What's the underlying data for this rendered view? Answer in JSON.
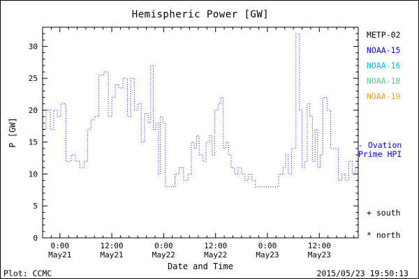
{
  "title": "Hemispheric Power [GW]",
  "legend": {
    "items": [
      {
        "label": "METP-02",
        "color": "#000000"
      },
      {
        "label": "NOAA-15",
        "color": "#0000ff"
      },
      {
        "label": "NOAA-16",
        "color": "#00bbee"
      },
      {
        "label": "NOAA-18",
        "color": "#55cc88"
      },
      {
        "label": "NOAA-19",
        "color": "#ff9922"
      }
    ],
    "series_label_line1": "- Ovation",
    "series_label_line2": "Prime HPI",
    "series_label_color": "#0000ff",
    "south_key": "+ south",
    "north_key": "* north"
  },
  "footer": {
    "plot_credit": "Plot: CCMC",
    "timestamp": "2015/05/23 19:50:13"
  },
  "chart_data": {
    "type": "line",
    "style": "dotted-step",
    "line_color": "#0000dd",
    "title": "Hemispheric Power [GW]",
    "xlabel": "Date and Time",
    "ylabel": "P [GW]",
    "ylim": [
      0,
      33
    ],
    "yticks": [
      0,
      5,
      10,
      15,
      20,
      25,
      30
    ],
    "xlim": [
      0,
      73
    ],
    "xticks": [
      {
        "t": 4,
        "label": "0:00",
        "sub": "May21"
      },
      {
        "t": 16,
        "label": "12:00",
        "sub": "May21"
      },
      {
        "t": 28,
        "label": "0:00",
        "sub": "May22"
      },
      {
        "t": 40,
        "label": "12:00",
        "sub": "May22"
      },
      {
        "t": 52,
        "label": "0:00",
        "sub": "May23"
      },
      {
        "t": 64,
        "label": "12:00",
        "sub": "May23"
      }
    ],
    "series": [
      {
        "name": "Ovation Prime HPI",
        "points": [
          [
            0,
            17
          ],
          [
            0.8,
            20
          ],
          [
            1.8,
            17
          ],
          [
            2.6,
            20
          ],
          [
            3.4,
            19
          ],
          [
            4.2,
            21
          ],
          [
            5.4,
            12
          ],
          [
            6.6,
            13
          ],
          [
            7.6,
            12
          ],
          [
            8.6,
            11
          ],
          [
            9.6,
            12
          ],
          [
            10.4,
            17
          ],
          [
            11.2,
            18.5
          ],
          [
            12.0,
            19
          ],
          [
            13.0,
            25.5
          ],
          [
            14.2,
            26
          ],
          [
            15.2,
            19
          ],
          [
            16.0,
            22
          ],
          [
            16.8,
            24
          ],
          [
            17.6,
            23.5
          ],
          [
            18.6,
            25
          ],
          [
            19.6,
            19
          ],
          [
            20.4,
            25
          ],
          [
            21.2,
            20
          ],
          [
            22.0,
            21
          ],
          [
            22.8,
            15
          ],
          [
            23.6,
            19.5
          ],
          [
            24.4,
            18
          ],
          [
            25.0,
            27
          ],
          [
            25.6,
            17
          ],
          [
            26.2,
            18
          ],
          [
            26.8,
            10
          ],
          [
            27.2,
            19
          ],
          [
            27.8,
            18
          ],
          [
            28.4,
            8
          ],
          [
            29.6,
            8
          ],
          [
            30.6,
            10
          ],
          [
            31.6,
            11
          ],
          [
            32.6,
            9
          ],
          [
            33.6,
            10
          ],
          [
            34.4,
            15
          ],
          [
            35.0,
            14
          ],
          [
            35.6,
            16
          ],
          [
            36.2,
            13
          ],
          [
            37.0,
            12
          ],
          [
            37.8,
            15
          ],
          [
            38.6,
            16
          ],
          [
            39.2,
            13
          ],
          [
            39.8,
            20
          ],
          [
            40.6,
            21
          ],
          [
            41.2,
            22
          ],
          [
            41.8,
            14
          ],
          [
            42.4,
            15
          ],
          [
            43.0,
            13
          ],
          [
            43.6,
            11
          ],
          [
            44.4,
            10
          ],
          [
            45.2,
            11
          ],
          [
            46.0,
            10
          ],
          [
            46.8,
            9
          ],
          [
            47.6,
            10
          ],
          [
            48.4,
            9
          ],
          [
            49.2,
            8
          ],
          [
            52.8,
            8
          ],
          [
            54.6,
            10
          ],
          [
            55.6,
            11
          ],
          [
            56.2,
            13
          ],
          [
            56.8,
            10
          ],
          [
            57.6,
            14
          ],
          [
            58.6,
            32
          ],
          [
            59.4,
            20
          ],
          [
            60.0,
            11
          ],
          [
            60.6,
            12
          ],
          [
            61.2,
            21
          ],
          [
            61.8,
            19
          ],
          [
            62.4,
            12
          ],
          [
            63.0,
            17
          ],
          [
            63.6,
            11
          ],
          [
            64.2,
            13
          ],
          [
            64.8,
            22
          ],
          [
            65.8,
            20
          ],
          [
            66.6,
            14
          ],
          [
            67.6,
            14
          ],
          [
            68.4,
            9
          ],
          [
            69.2,
            10
          ],
          [
            70.0,
            9
          ],
          [
            70.8,
            12
          ],
          [
            71.6,
            10
          ],
          [
            72.4,
            11
          ],
          [
            73,
            11
          ]
        ]
      }
    ]
  }
}
